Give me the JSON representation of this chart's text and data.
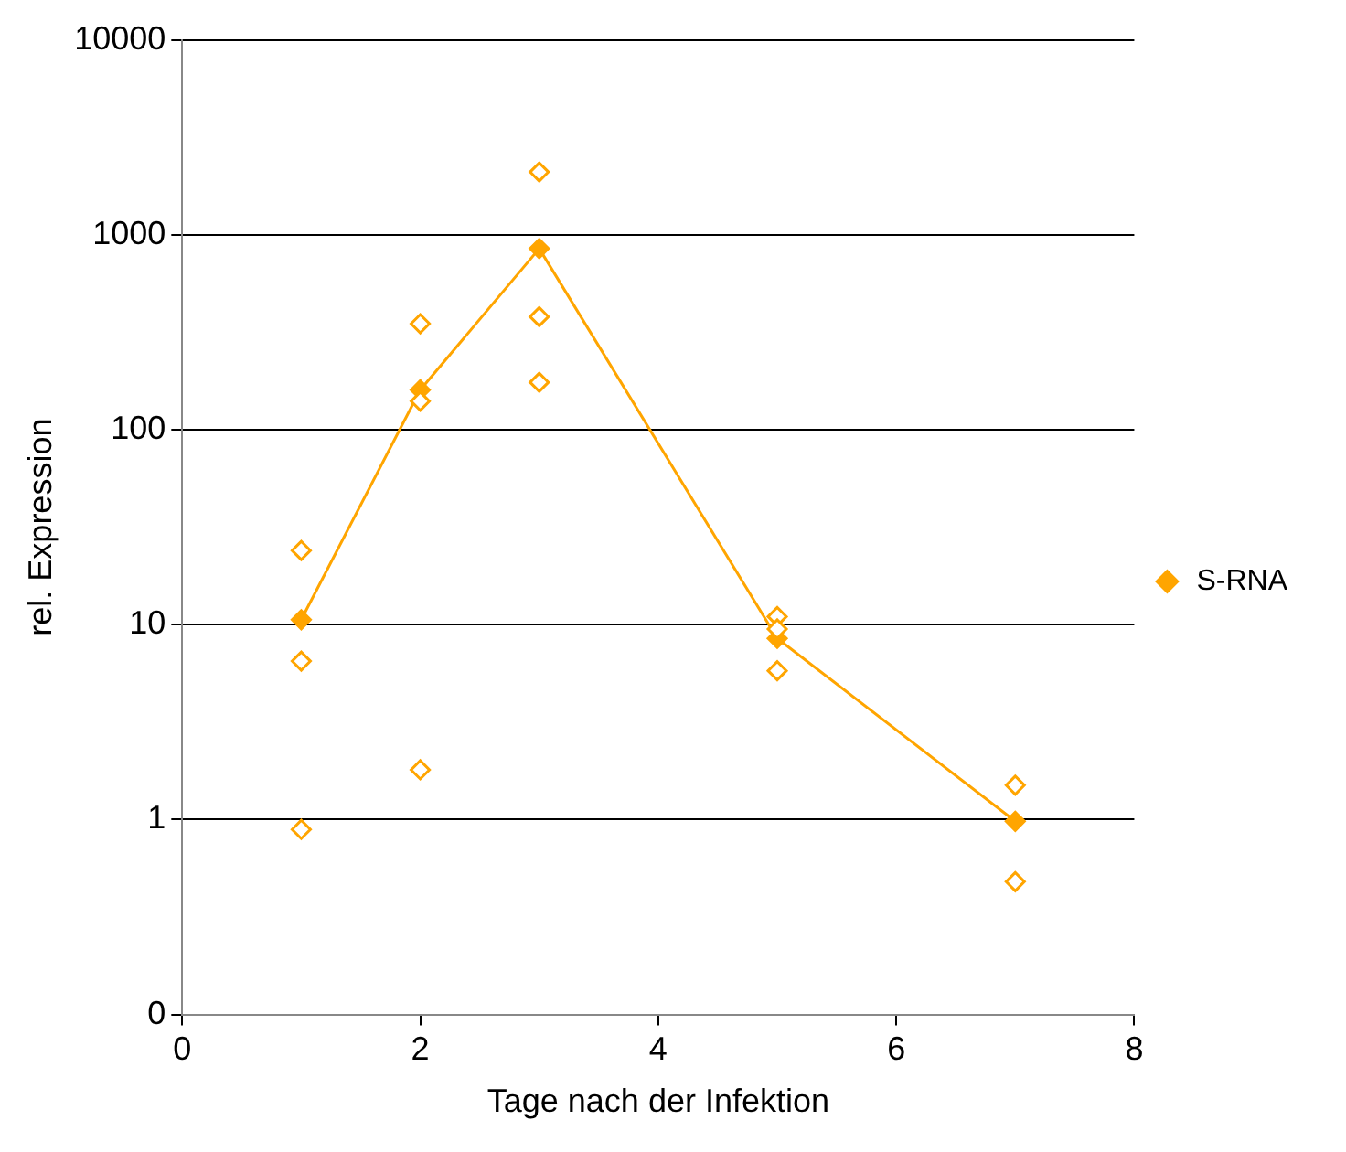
{
  "chart_data": {
    "type": "line",
    "xlabel": "Tage nach der Infektion",
    "ylabel": "rel. Expression",
    "log": "y",
    "xlim": [
      0,
      8
    ],
    "xticks": [
      0,
      2,
      4,
      6,
      8
    ],
    "ylim": [
      0.1,
      10000
    ],
    "yticks": [
      {
        "value": 0.1,
        "label": "0"
      },
      1,
      10,
      100,
      1000,
      10000
    ],
    "grid": "y",
    "legend": "right",
    "series": [
      {
        "type": "scatter",
        "color": "#ffa500",
        "marker": "diamond",
        "x": [
          1,
          1,
          1,
          2,
          2,
          2,
          3,
          3,
          3,
          5,
          5,
          5,
          7,
          7
        ],
        "values": [
          24,
          6.5,
          0.89,
          350,
          140,
          1.8,
          2100,
          380,
          175,
          11,
          9.5,
          5.8,
          1.5,
          0.48
        ]
      },
      {
        "name": "S-RNA",
        "color": "#ffa500",
        "marker": "diamond",
        "line_style": "solid",
        "x": [
          1,
          2,
          3,
          5,
          7
        ],
        "values": [
          10.6,
          160,
          850,
          8.5,
          0.98
        ]
      }
    ]
  }
}
